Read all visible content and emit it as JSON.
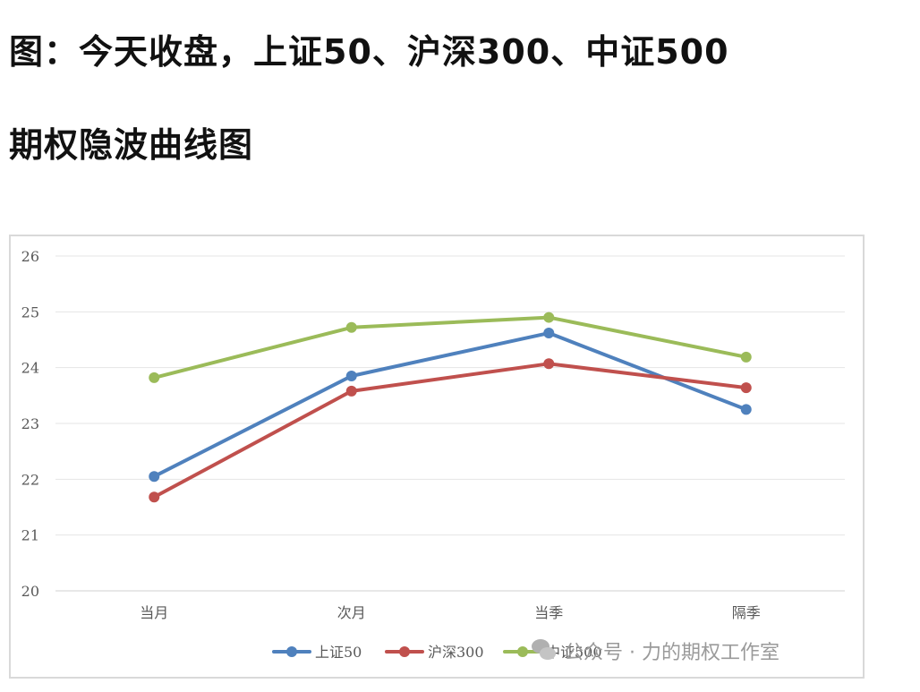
{
  "heading": {
    "line1": "图：今天收盘，上证50、沪深300、中证500",
    "line2": "期权隐波曲线图"
  },
  "watermark": "公众号 · 力的期权工作室",
  "chart_data": {
    "type": "line",
    "title": "",
    "xlabel": "",
    "ylabel": "",
    "categories": [
      "当月",
      "次月",
      "当季",
      "隔季"
    ],
    "ylim": [
      20,
      26
    ],
    "yticks": [
      20,
      21,
      22,
      23,
      24,
      25,
      26
    ],
    "grid": true,
    "legend": "bottom",
    "series": [
      {
        "name": "上证50",
        "color": "#4f81bd",
        "values": [
          22.05,
          23.85,
          24.62,
          23.25
        ]
      },
      {
        "name": "沪深300",
        "color": "#c0504d",
        "values": [
          21.68,
          23.58,
          24.07,
          23.64
        ]
      },
      {
        "name": "中证500",
        "color": "#9bbb59",
        "values": [
          23.82,
          24.72,
          24.9,
          24.19
        ]
      }
    ]
  }
}
